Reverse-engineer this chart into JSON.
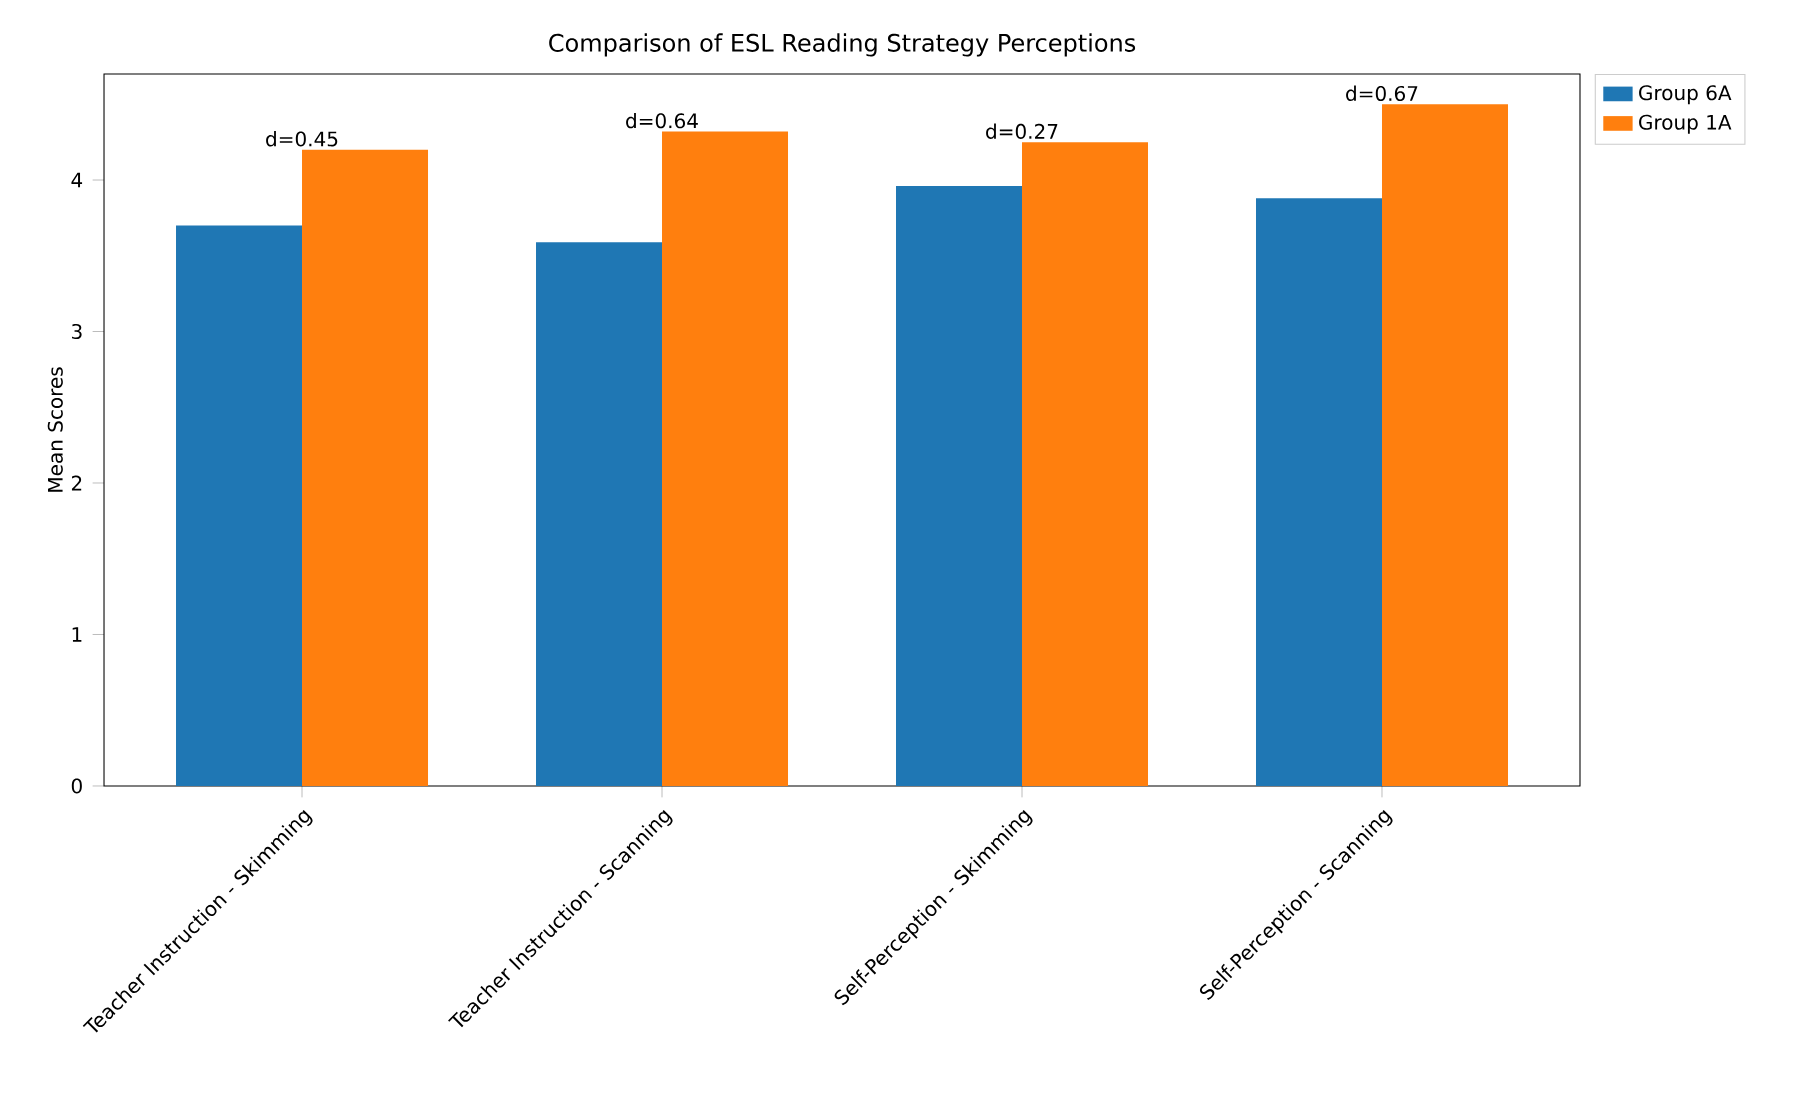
{
  "chart_data": {
    "type": "bar",
    "title": "Comparison of ESL Reading Strategy Perceptions",
    "ylabel": "Mean Scores",
    "categories": [
      "Teacher Instruction - Skimming",
      "Teacher Instruction - Scanning",
      "Self-Perception - Skimming",
      "Self-Perception - Scanning"
    ],
    "series": [
      {
        "name": "Group 6A",
        "color": "#1f77b4",
        "values": [
          3.7,
          3.59,
          3.96,
          3.88
        ]
      },
      {
        "name": "Group 1A",
        "color": "#ff7f0e",
        "values": [
          4.2,
          4.32,
          4.25,
          4.5
        ]
      }
    ],
    "ylim": [
      0,
      4.7
    ],
    "yticks": [
      0,
      1,
      2,
      3,
      4
    ],
    "legend": "top right",
    "grid": false,
    "annotations": [
      {
        "text": "d=0.45",
        "x": "Teacher Instruction - Skimming",
        "y": 4.2
      },
      {
        "text": "d=0.64",
        "x": "Teacher Instruction - Scanning",
        "y": 4.32
      },
      {
        "text": "d=0.27",
        "x": "Self-Perception - Skimming",
        "y": 4.25
      },
      {
        "text": "d=0.67",
        "x": "Self-Perception - Scanning",
        "y": 4.5
      }
    ]
  }
}
